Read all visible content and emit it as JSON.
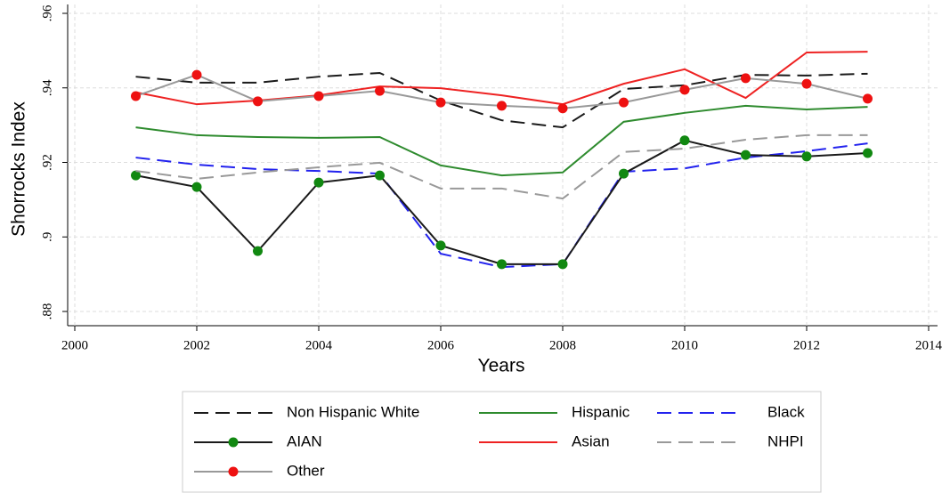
{
  "chart_data": {
    "type": "line",
    "x_label": "Years",
    "y_label": "Shorrocks Index",
    "x": [
      2001,
      2002,
      2003,
      2004,
      2005,
      2006,
      2007,
      2008,
      2009,
      2010,
      2011,
      2012,
      2013
    ],
    "xlim": [
      2000,
      2014
    ],
    "xticks": [
      2000,
      2002,
      2004,
      2006,
      2008,
      2010,
      2012,
      2014
    ],
    "ylim": [
      0.88,
      0.96
    ],
    "yticks": [
      {
        "value": 0.88,
        "label": ".88"
      },
      {
        "value": 0.9,
        "label": ".9"
      },
      {
        "value": 0.92,
        "label": ".92"
      },
      {
        "value": 0.94,
        "label": ".94"
      },
      {
        "value": 0.96,
        "label": ".96"
      }
    ],
    "grid": true,
    "series": [
      {
        "name": "Non Hispanic White",
        "color": "#1a1a1a",
        "dash": true,
        "values": [
          0.943,
          0.9414,
          0.9414,
          0.943,
          0.944,
          0.9366,
          0.9313,
          0.9294,
          0.9397,
          0.9407,
          0.9435,
          0.9433,
          0.9438
        ]
      },
      {
        "name": "Hispanic",
        "color": "#2e8b2e",
        "values": [
          0.9294,
          0.9273,
          0.9268,
          0.9266,
          0.9268,
          0.9192,
          0.9165,
          0.9173,
          0.9309,
          0.9333,
          0.9352,
          0.9342,
          0.9349
        ]
      },
      {
        "name": "Black",
        "color": "#2222ee",
        "dash": true,
        "values": [
          0.9213,
          0.9194,
          0.9182,
          0.9177,
          0.917,
          0.8955,
          0.8919,
          0.8927,
          0.9175,
          0.9184,
          0.9213,
          0.923,
          0.9251
        ]
      },
      {
        "name": "AIAN",
        "color": "#1a1a1a",
        "marker": "circle",
        "marker_color": "#118811",
        "values": [
          0.9165,
          0.9134,
          0.8962,
          0.9146,
          0.9165,
          0.8977,
          0.8927,
          0.8927,
          0.917,
          0.9259,
          0.922,
          0.9216,
          0.9225
        ]
      },
      {
        "name": "Asian",
        "color": "#ee2222",
        "values": [
          0.9388,
          0.9356,
          0.9366,
          0.938,
          0.9404,
          0.9399,
          0.938,
          0.9356,
          0.9411,
          0.945,
          0.9373,
          0.9495,
          0.9497
        ]
      },
      {
        "name": "NHPI",
        "color": "#999999",
        "dash": true,
        "values": [
          0.9177,
          0.9156,
          0.9173,
          0.9187,
          0.9199,
          0.913,
          0.913,
          0.9103,
          0.9228,
          0.9237,
          0.9261,
          0.9273,
          0.9273
        ]
      },
      {
        "name": "Other",
        "color": "#999999",
        "marker": "circle",
        "marker_color": "#ee1111",
        "values": [
          0.9378,
          0.9435,
          0.9364,
          0.9378,
          0.9392,
          0.9361,
          0.9352,
          0.9345,
          0.9361,
          0.9395,
          0.9426,
          0.9411,
          0.9371
        ]
      }
    ]
  }
}
